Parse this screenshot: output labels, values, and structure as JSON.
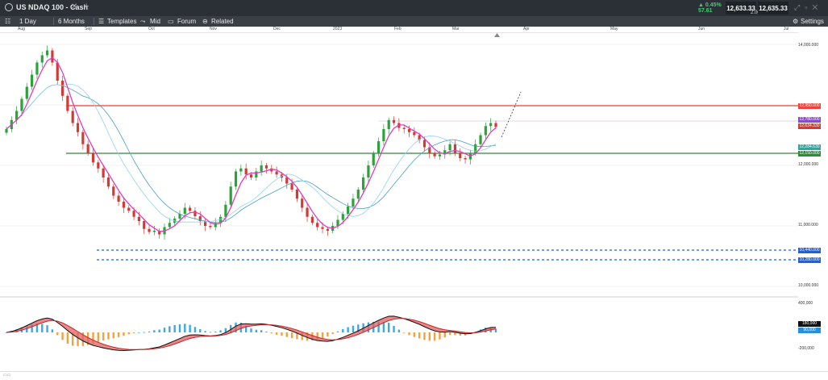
{
  "instrument": {
    "title": "US NDAQ 100 - Cash"
  },
  "quote": {
    "change_pct": "▲ 0.45%",
    "change_abs": "57.61",
    "bid": "12,633.33",
    "ask": "12,635.33",
    "spread": "2.00"
  },
  "toolbar": {
    "interval": "1 Day",
    "range": "6 Months",
    "templates": "Templates",
    "mid": "Mid",
    "forum": "Forum",
    "related": "Related",
    "settings": "Settings"
  },
  "xaxis": [
    "Aug",
    "Sep",
    "Oct",
    "Nov",
    "Dec",
    "2023",
    "Feb",
    "Mar",
    "Apr",
    "May",
    "Jun",
    "Jul"
  ],
  "yaxis": [
    "14,000.000",
    "13,000.000",
    "12,000.000",
    "11,000.000",
    "10,000.000"
  ],
  "price_tags": {
    "resistance": "12,950.000",
    "purple": "12,780.000",
    "current": "12,634.330",
    "teal": "12,284.630",
    "support": "12,150.000",
    "blue1": "10,440.000",
    "blue2": "10,280.000"
  },
  "macd_axis": {
    "top": "400,000",
    "bottom": "-200,000",
    "tag_black": "180,000",
    "tag_blue": "90,000"
  },
  "colors": {
    "bull": "#2aa339",
    "bear": "#d43a34",
    "ma_fast": "#e13cbf",
    "ma_mid": "#6cc3e6",
    "ma_slow": "#4aa0c0",
    "resistance": "#e8463a",
    "support": "#2e8b3a",
    "dotted": "#2060d8"
  },
  "chart_data": {
    "type": "candlestick",
    "x": [
      "Aug",
      "Sep",
      "Oct",
      "Nov",
      "Dec",
      "2023",
      "Feb",
      "Mar",
      "Apr",
      "May",
      "Jun",
      "Jul"
    ],
    "ylim": [
      9900,
      14200
    ],
    "closes": [
      12600,
      12750,
      12900,
      13100,
      13300,
      13500,
      13700,
      13820,
      13900,
      13700,
      13400,
      13150,
      12900,
      12700,
      12550,
      12350,
      12200,
      12050,
      11950,
      11800,
      11650,
      11500,
      11400,
      11300,
      11250,
      11150,
      11080,
      10950,
      10900,
      10920,
      10860,
      10980,
      11050,
      11120,
      11200,
      11300,
      11250,
      11160,
      11080,
      11000,
      10980,
      11050,
      11150,
      11350,
      11650,
      11900,
      11950,
      11850,
      11800,
      11900,
      12000,
      11950,
      11900,
      11850,
      11800,
      11700,
      11600,
      11450,
      11300,
      11150,
      11050,
      10980,
      10950,
      10920,
      11000,
      11100,
      11200,
      11320,
      11450,
      11600,
      11800,
      12000,
      12200,
      12400,
      12600,
      12750,
      12700,
      12620,
      12600,
      12550,
      12500,
      12420,
      12300,
      12200,
      12150,
      12180,
      12250,
      12350,
      12200,
      12120,
      12100,
      12200,
      12350,
      12500,
      12650,
      12700,
      12634
    ],
    "resistance": 12950,
    "support": 12150,
    "blue_levels": [
      10440,
      10280
    ]
  }
}
